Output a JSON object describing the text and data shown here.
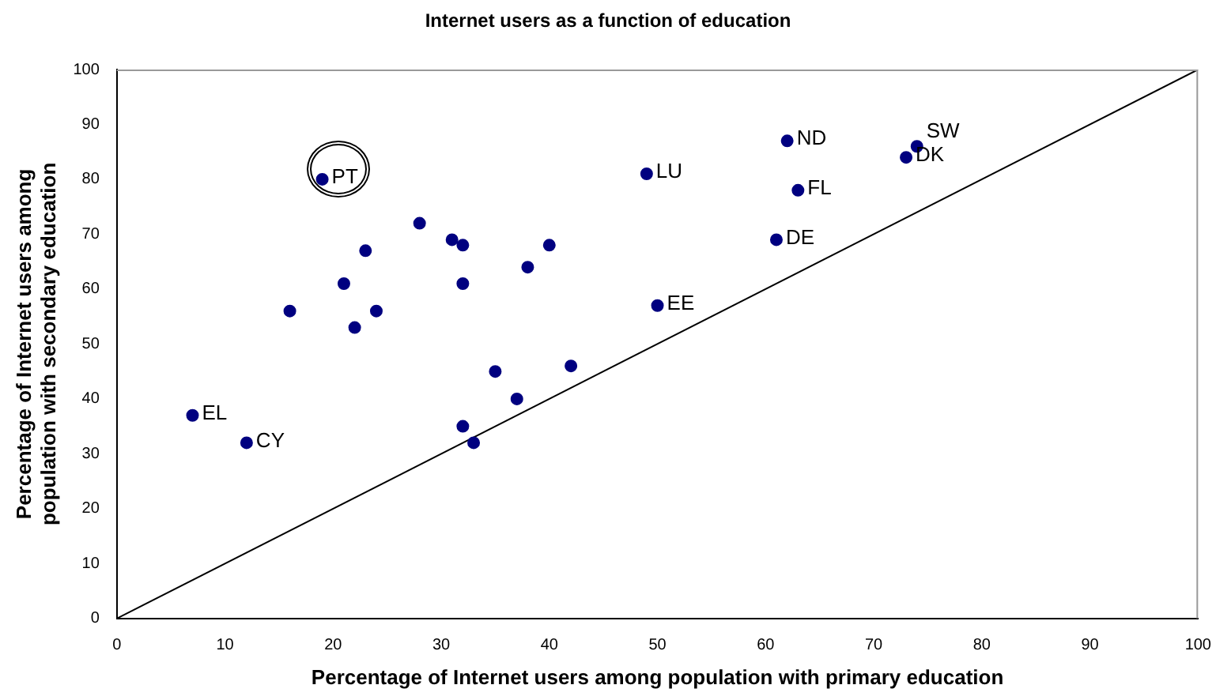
{
  "chart_data": {
    "type": "scatter",
    "title": "Internet users as a function of education",
    "xlabel": "Percentage of Internet users among population with primary education",
    "ylabel": "Percentage of Internet users among population with secondary education",
    "x": [
      7,
      12,
      19,
      16,
      21,
      22,
      23,
      24,
      28,
      31,
      32,
      32,
      38,
      40,
      35,
      37,
      42,
      32,
      33,
      49,
      50,
      62,
      63,
      61,
      73,
      74
    ],
    "series": [
      {
        "color": "#000080",
        "marker": "circle",
        "values": [
          37,
          32,
          80,
          56,
          61,
          53,
          67,
          56,
          72,
          69,
          68,
          61,
          64,
          68,
          45,
          40,
          46,
          35,
          32,
          81,
          57,
          87,
          78,
          69,
          84,
          86
        ]
      },
      {
        "type": "line",
        "color": "#000000",
        "marker": "none",
        "x": [
          0,
          100
        ],
        "values": [
          0,
          100
        ]
      }
    ],
    "annotations": [
      {
        "text": "EL",
        "x": 7,
        "y": 37
      },
      {
        "text": "CY",
        "x": 12,
        "y": 32
      },
      {
        "text": "PT",
        "x": 19,
        "y": 80
      },
      {
        "text": "LU",
        "x": 49,
        "y": 81
      },
      {
        "text": "EE",
        "x": 50,
        "y": 57
      },
      {
        "text": "ND",
        "x": 62,
        "y": 87
      },
      {
        "text": "FL",
        "x": 63,
        "y": 78
      },
      {
        "text": "DE",
        "x": 61,
        "y": 69
      },
      {
        "text": "DK",
        "x": 73,
        "y": 84
      },
      {
        "text": "SW",
        "x": 74,
        "y": 86
      }
    ],
    "xlim": [
      0,
      100
    ],
    "ylim": [
      0,
      100
    ],
    "xticks": [
      0,
      10,
      20,
      30,
      40,
      50,
      60,
      70,
      80,
      90,
      100
    ],
    "yticks": [
      0,
      10,
      20,
      30,
      40,
      50,
      60,
      70,
      80,
      90,
      100
    ],
    "grid": false,
    "legend": false
  }
}
